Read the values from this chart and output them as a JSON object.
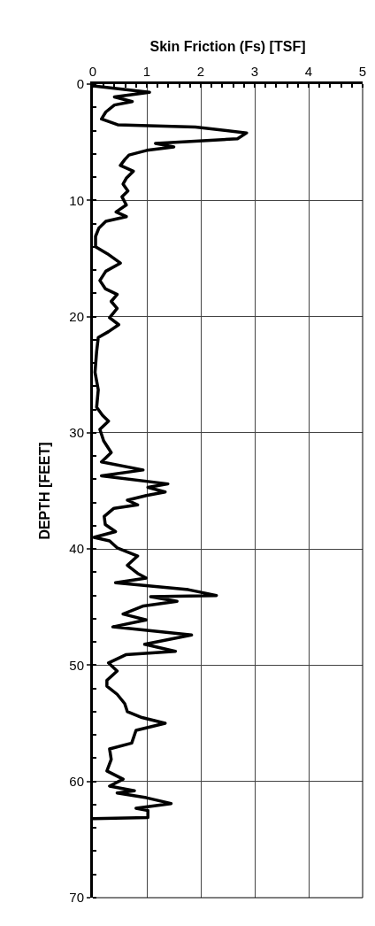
{
  "chart_data": {
    "type": "line",
    "xlabel": "Skin Friction (Fs) [TSF]",
    "ylabel": "DEPTH [FEET]",
    "xlim": [
      0,
      5
    ],
    "xticks": [
      0,
      1,
      2,
      3,
      4,
      5
    ],
    "ylim": [
      70,
      0
    ],
    "yticks": [
      0,
      10,
      20,
      30,
      40,
      50,
      60,
      70
    ],
    "grid": true,
    "marker": "none",
    "line_style": "solid",
    "series": [
      {
        "color": "#000000",
        "x": [
          0,
          1.05,
          0.4,
          0.73,
          0.4,
          0.24,
          0.16,
          0.46,
          1.9,
          2.85,
          2.68,
          1.16,
          1.5,
          1.0,
          0.67,
          0.59,
          0.51,
          0.75,
          0.62,
          0.56,
          0.65,
          0.54,
          0.62,
          0.43,
          0.62,
          0.24,
          0.11,
          0.05,
          0.05,
          0.27,
          0.51,
          0.24,
          0.13,
          0.23,
          0.45,
          0.34,
          0.45,
          0.31,
          0.48,
          0.29,
          0.1,
          0.07,
          0.04,
          0.1,
          0.07,
          0.18,
          0.29,
          0.13,
          0.2,
          0.34,
          0.16,
          0.93,
          0.16,
          1.39,
          1.02,
          1.34,
          0.99,
          0.64,
          0.83,
          0.39,
          0.21,
          0.23,
          0.42,
          0.02,
          0.31,
          0.45,
          0.83,
          0.64,
          0.83,
          0.99,
          0.42,
          1.77,
          2.29,
          1.07,
          1.56,
          0.94,
          0.56,
          0.99,
          0.37,
          1.83,
          0.96,
          1.53,
          0.61,
          0.29,
          0.45,
          0.26,
          0.26,
          0.45,
          0.59,
          0.64,
          0.91,
          1.34,
          0.8,
          0.72,
          0.31,
          0.34,
          0.26,
          0.56,
          0.31,
          0.77,
          0.45,
          0.99,
          1.45,
          0.8,
          1.02,
          1.02,
          0
        ],
        "values": [
          0.15,
          0.7,
          1.1,
          1.5,
          1.8,
          2.4,
          3.0,
          3.5,
          3.7,
          4.2,
          4.7,
          5.1,
          5.4,
          5.7,
          6.1,
          6.5,
          7.0,
          7.5,
          8.1,
          8.6,
          9.2,
          9.7,
          10.4,
          11.0,
          11.4,
          11.8,
          12.4,
          13.1,
          14.0,
          14.6,
          15.4,
          16.1,
          16.9,
          17.6,
          18.1,
          18.7,
          19.3,
          20.1,
          20.7,
          21.3,
          21.8,
          23.0,
          24.8,
          26.3,
          27.8,
          28.5,
          29.0,
          29.7,
          30.7,
          31.7,
          32.5,
          33.2,
          33.7,
          34.4,
          34.7,
          35.1,
          35.4,
          35.8,
          36.2,
          36.5,
          37.2,
          37.9,
          38.5,
          39.0,
          39.3,
          39.9,
          40.6,
          41.4,
          42.1,
          42.5,
          42.9,
          43.5,
          44.0,
          44.1,
          44.5,
          44.9,
          45.6,
          46.1,
          46.7,
          47.4,
          48.2,
          48.8,
          49.1,
          49.8,
          50.5,
          51.3,
          51.8,
          52.5,
          53.3,
          54.0,
          54.5,
          55.0,
          55.6,
          56.7,
          57.2,
          58.1,
          59.1,
          59.8,
          60.4,
          60.8,
          61.0,
          61.4,
          61.9,
          62.3,
          62.5,
          63.1,
          63.2
        ]
      }
    ]
  }
}
